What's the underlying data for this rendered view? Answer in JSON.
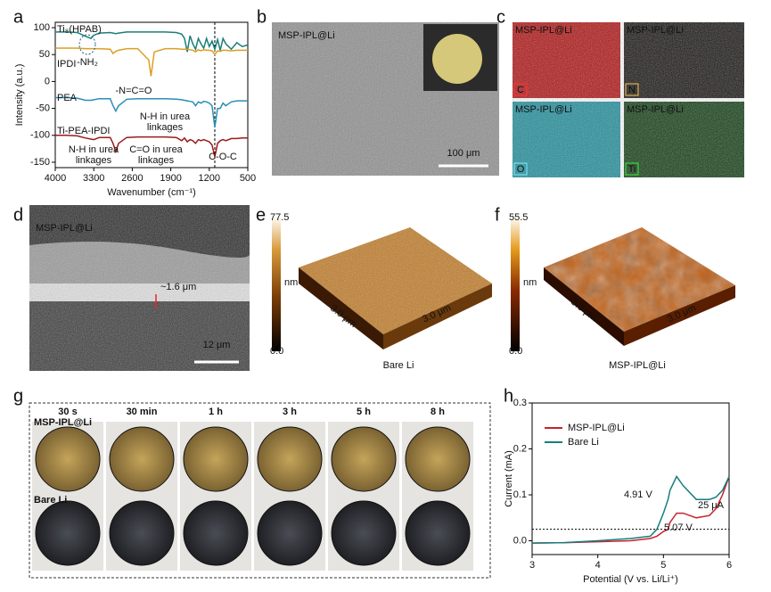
{
  "figure": {
    "letters": [
      "a",
      "b",
      "c",
      "d",
      "e",
      "f",
      "g",
      "h"
    ]
  },
  "chart_data": [
    {
      "type": "line",
      "xlabel": "Wavenumber (cm⁻¹)",
      "ylabel": "Intensity (a.u.)",
      "x": [
        4000,
        3800,
        3600,
        3450,
        3350,
        3300,
        3200,
        3000,
        2950,
        2900,
        2850,
        2700,
        2500,
        2300,
        2260,
        2200,
        2000,
        1800,
        1700,
        1650,
        1600,
        1550,
        1500,
        1450,
        1400,
        1350,
        1300,
        1250,
        1200,
        1150,
        1100,
        1050,
        1000,
        950,
        900,
        800,
        700,
        600,
        500
      ],
      "xlim": [
        4000,
        500
      ],
      "xticks": [
        4000,
        3300,
        2600,
        1900,
        1200,
        500
      ],
      "ylim": [
        -160,
        110
      ],
      "yticks": [
        100,
        50,
        0,
        -50,
        -100,
        -150
      ],
      "vline": 1100,
      "series": [
        {
          "name": "Ti₈(HPAB)",
          "color": "#1a7f7a",
          "values": [
            92,
            92,
            91,
            84,
            80,
            86,
            90,
            91,
            90,
            89,
            90,
            92,
            92,
            92,
            92,
            92,
            92,
            91,
            88,
            80,
            55,
            85,
            70,
            60,
            80,
            70,
            62,
            80,
            65,
            75,
            60,
            78,
            58,
            80,
            70,
            60,
            72,
            65,
            68
          ]
        },
        {
          "name": "IPDI",
          "color": "#d9a024",
          "values": [
            62,
            62,
            62,
            61,
            61,
            61,
            61,
            60,
            52,
            56,
            58,
            61,
            61,
            40,
            10,
            55,
            61,
            61,
            60,
            60,
            60,
            59,
            58,
            55,
            59,
            57,
            59,
            58,
            58,
            57,
            50,
            57,
            56,
            58,
            58,
            57,
            58,
            58,
            58
          ]
        },
        {
          "name": "PEA",
          "color": "#2a8fb6",
          "values": [
            -30,
            -30,
            -31,
            -35,
            -35,
            -34,
            -32,
            -32,
            -45,
            -55,
            -45,
            -33,
            -32,
            -32,
            -32,
            -32,
            -32,
            -33,
            -34,
            -35,
            -36,
            -37,
            -38,
            -45,
            -38,
            -40,
            -37,
            -38,
            -40,
            -45,
            -85,
            -50,
            -50,
            -40,
            -45,
            -38,
            -36,
            -36,
            -36
          ]
        },
        {
          "name": "Ti-PEA-IPDI",
          "color": "#9b1b1b",
          "values": [
            -100,
            -100,
            -101,
            -105,
            -107,
            -108,
            -104,
            -104,
            -115,
            -130,
            -115,
            -104,
            -103,
            -103,
            -103,
            -103,
            -103,
            -104,
            -110,
            -105,
            -112,
            -108,
            -110,
            -115,
            -108,
            -110,
            -108,
            -110,
            -112,
            -118,
            -140,
            -115,
            -110,
            -108,
            -110,
            -106,
            -106,
            -105,
            -105
          ]
        }
      ],
      "annotations": [
        [
          "-NH₂"
        ],
        [
          "-N=C=O"
        ],
        [
          "N-H in urea",
          "linkages"
        ],
        [
          "C=O in urea",
          "linkages"
        ],
        [
          "N-H in urea",
          "linkages"
        ],
        [
          "C-O-C"
        ]
      ]
    },
    {
      "type": "line",
      "xlabel": "Potential (V vs. Li/Li⁺)",
      "ylabel": "Current (mA)",
      "legend": "upper left",
      "x": [
        3,
        3.5,
        4,
        4.5,
        4.8,
        4.9,
        5.0,
        5.07,
        5.1,
        5.2,
        5.3,
        5.5,
        5.7,
        5.8,
        5.9,
        6.0
      ],
      "xlim": [
        3,
        6
      ],
      "xticks": [
        3,
        4,
        5,
        6
      ],
      "ylim": [
        -0.03,
        0.3
      ],
      "yticks": [
        {
          "value": 0,
          "label": "0.0"
        },
        0.1,
        0.2,
        0.3
      ],
      "hline": 0.025,
      "series": [
        {
          "name": "MSP-IPL@Li",
          "color": "#c8232c",
          "values": [
            -0.005,
            -0.004,
            -0.002,
            0,
            0.005,
            0.01,
            0.02,
            0.025,
            0.04,
            0.06,
            0.06,
            0.05,
            0.055,
            0.07,
            0.1,
            0.14
          ]
        },
        {
          "name": "Bare Li",
          "color": "#177e7e",
          "values": [
            -0.005,
            -0.004,
            0,
            0.005,
            0.01,
            0.025,
            0.06,
            0.09,
            0.11,
            0.14,
            0.12,
            0.09,
            0.09,
            0.095,
            0.11,
            0.14
          ]
        }
      ],
      "annotations": [
        [
          "4.91 V"
        ],
        [
          "5.07 V"
        ],
        [
          "25 μA"
        ]
      ]
    }
  ],
  "images": {
    "b": {
      "label": "MSP-IPL@Li",
      "scale": "100 μm"
    },
    "c": {
      "label": "MSP-IPL@Li",
      "elements": [
        "C",
        "N",
        "O",
        "Ti"
      ]
    },
    "d": {
      "label": "MSP-IPL@Li",
      "thickness": "~1.6 μm",
      "scale": "12 μm"
    },
    "e": {
      "max": "77.5",
      "min": "0.0",
      "unit": "nm",
      "axis": "3.0 μm",
      "caption": "Bare Li"
    },
    "f": {
      "max": "55.5",
      "min": "0.0",
      "unit": "nm",
      "axis": "3.0 μm",
      "caption": "MSP-IPL@Li"
    },
    "g": {
      "times": [
        "30 s",
        "30 min",
        "1 h",
        "3 h",
        "5 h",
        "8 h"
      ],
      "rows": [
        "MSP-IPL@Li",
        "Bare Li"
      ]
    }
  }
}
